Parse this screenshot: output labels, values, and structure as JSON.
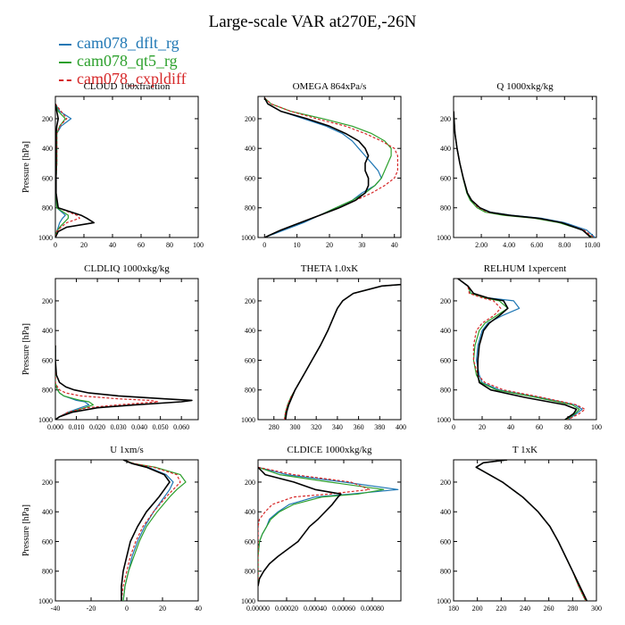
{
  "figure": {
    "title": "Large-scale VAR at270E,-26N"
  },
  "legend": [
    {
      "label": "cam078_dflt_rg",
      "color": "#1f77b4",
      "style": "solid"
    },
    {
      "label": "cam078_qt5_rg",
      "color": "#2ca02c",
      "style": "solid"
    },
    {
      "label": "cam078_cxpldiff",
      "color": "#d62728",
      "style": "dashed"
    },
    {
      "label": "",
      "color": "#000000",
      "style": "solid"
    }
  ],
  "chart_data": [
    {
      "type": "line",
      "title": "CLOUD 100xfraction",
      "xlabel": "",
      "ylabel": "Pressure [hPa]",
      "xlim": [
        0,
        100
      ],
      "ylim": [
        1000,
        50
      ],
      "xticks": [
        "0",
        "20",
        "40",
        "60",
        "80",
        "100"
      ],
      "yticks": [
        "200",
        "400",
        "600",
        "800",
        "1000"
      ],
      "y": [
        100,
        150,
        200,
        250,
        300,
        400,
        500,
        600,
        700,
        800,
        850,
        870,
        900,
        930,
        960,
        1000
      ],
      "series": [
        {
          "name": "cam078_dflt_rg",
          "values": [
            0,
            3,
            11,
            4,
            1,
            1,
            1,
            0.5,
            0.5,
            1,
            7,
            5,
            3,
            2,
            1,
            0
          ]
        },
        {
          "name": "cam078_qt5_rg",
          "values": [
            0,
            2,
            7,
            3,
            1,
            1,
            1,
            0.5,
            0.5,
            1,
            9,
            9,
            6,
            3,
            1,
            0
          ]
        },
        {
          "name": "cam078_cxpldiff",
          "values": [
            0,
            4,
            8,
            3,
            1,
            1,
            1,
            0.5,
            0.5,
            2,
            15,
            17,
            8,
            4,
            1,
            0
          ]
        },
        {
          "name": "",
          "values": [
            0,
            1,
            2,
            1,
            0.5,
            0.5,
            0.5,
            0.5,
            0.5,
            2,
            18,
            22,
            27,
            8,
            2,
            0
          ]
        }
      ]
    },
    {
      "type": "line",
      "title": "OMEGA 864xPa/s",
      "xlabel": "",
      "ylabel": "",
      "xlim": [
        -2,
        42
      ],
      "ylim": [
        1000,
        50
      ],
      "xticks": [
        "0",
        "10",
        "20",
        "30",
        "40"
      ],
      "yticks": [
        "200",
        "400",
        "600",
        "800",
        "1000"
      ],
      "y": [
        60,
        100,
        150,
        200,
        250,
        300,
        350,
        400,
        450,
        500,
        550,
        600,
        650,
        700,
        750,
        800,
        850,
        900,
        950,
        1000
      ],
      "series": [
        {
          "name": "cam078_dflt_rg",
          "values": [
            0,
            1,
            5,
            12,
            19,
            24,
            27,
            29,
            31,
            33,
            35,
            36,
            34,
            30,
            27,
            22,
            17,
            12,
            6,
            0
          ]
        },
        {
          "name": "cam078_qt5_rg",
          "values": [
            0,
            2,
            8,
            18,
            27,
            33,
            37,
            39,
            39,
            38,
            37,
            36,
            34,
            31,
            27,
            22,
            17,
            11,
            5,
            0
          ]
        },
        {
          "name": "cam078_cxpldiff",
          "values": [
            0,
            2,
            8,
            16,
            25,
            31,
            36,
            40,
            41,
            41,
            41,
            40,
            37,
            33,
            28,
            23,
            17,
            11,
            5,
            0
          ]
        },
        {
          "name": "",
          "values": [
            0,
            1,
            5,
            13,
            20,
            25,
            29,
            31,
            32,
            31,
            31,
            32,
            32,
            31,
            28,
            23,
            17,
            11,
            5,
            0
          ]
        }
      ]
    },
    {
      "type": "line",
      "title": "Q 1000xkg/kg",
      "xlabel": "",
      "ylabel": "",
      "xlim": [
        0,
        10.3
      ],
      "ylim": [
        1000,
        50
      ],
      "xticks": [
        "2.00",
        "4.00",
        "6.00",
        "8.00",
        "10.00"
      ],
      "yticks": [
        "200",
        "400",
        "600",
        "800",
        "1000"
      ],
      "y": [
        150,
        200,
        300,
        400,
        500,
        600,
        700,
        750,
        800,
        830,
        850,
        870,
        900,
        950,
        1000
      ],
      "series": [
        {
          "name": "cam078_dflt_rg",
          "values": [
            0.01,
            0.03,
            0.1,
            0.25,
            0.45,
            0.7,
            1.0,
            1.3,
            1.9,
            2.7,
            4.2,
            6.3,
            8.0,
            9.6,
            10.2
          ]
        },
        {
          "name": "cam078_qt5_rg",
          "values": [
            0.01,
            0.03,
            0.1,
            0.25,
            0.45,
            0.68,
            0.95,
            1.2,
            1.7,
            2.3,
            3.6,
            5.8,
            7.6,
            9.3,
            10.0
          ]
        },
        {
          "name": "cam078_cxpldiff",
          "values": [
            0.01,
            0.03,
            0.1,
            0.25,
            0.45,
            0.7,
            1.0,
            1.3,
            1.8,
            2.5,
            3.9,
            6.0,
            7.8,
            9.4,
            10.1
          ]
        },
        {
          "name": "",
          "values": [
            0.01,
            0.03,
            0.1,
            0.25,
            0.45,
            0.7,
            1.0,
            1.3,
            1.9,
            2.6,
            4.0,
            6.1,
            7.8,
            9.3,
            9.9
          ]
        }
      ]
    },
    {
      "type": "line",
      "title": "CLDLIQ 1000xkg/kg",
      "xlabel": "",
      "ylabel": "Pressure [hPa]",
      "xlim": [
        0,
        0.068
      ],
      "ylim": [
        1000,
        50
      ],
      "xticks": [
        "0.000",
        "0.010",
        "0.020",
        "0.030",
        "0.040",
        "0.050",
        "0.060"
      ],
      "yticks": [
        "200",
        "400",
        "600",
        "800",
        "1000"
      ],
      "y": [
        500,
        600,
        700,
        750,
        780,
        800,
        820,
        840,
        860,
        870,
        880,
        900,
        920,
        950,
        980,
        1000
      ],
      "series": [
        {
          "name": "cam078_dflt_rg",
          "values": [
            0,
            0,
            0,
            0,
            0.0005,
            0.001,
            0.002,
            0.004,
            0.008,
            0.01,
            0.014,
            0.016,
            0.012,
            0.006,
            0.002,
            0
          ]
        },
        {
          "name": "cam078_qt5_rg",
          "values": [
            0,
            0,
            0,
            0,
            0.0005,
            0.001,
            0.002,
            0.004,
            0.009,
            0.012,
            0.016,
            0.018,
            0.014,
            0.007,
            0.002,
            0
          ]
        },
        {
          "name": "cam078_cxpldiff",
          "values": [
            0,
            0,
            0,
            0,
            0.001,
            0.002,
            0.005,
            0.012,
            0.03,
            0.045,
            0.049,
            0.03,
            0.015,
            0.006,
            0.002,
            0
          ]
        },
        {
          "name": "",
          "values": [
            0,
            0,
            0.0005,
            0.002,
            0.005,
            0.009,
            0.016,
            0.03,
            0.052,
            0.065,
            0.06,
            0.038,
            0.02,
            0.008,
            0.002,
            0
          ]
        }
      ]
    },
    {
      "type": "line",
      "title": "THETA 1.0xK",
      "xlabel": "",
      "ylabel": "",
      "xlim": [
        265,
        400
      ],
      "ylim": [
        1000,
        50
      ],
      "xticks": [
        "280",
        "300",
        "320",
        "340",
        "360",
        "380",
        "400"
      ],
      "yticks": [
        "200",
        "400",
        "600",
        "800",
        "1000"
      ],
      "y": [
        90,
        100,
        150,
        200,
        250,
        300,
        400,
        500,
        600,
        700,
        800,
        850,
        900,
        950,
        1000
      ],
      "series": [
        {
          "name": "cam078_dflt_rg",
          "values": [
            400,
            382,
            355,
            345,
            340,
            337,
            331,
            324,
            316,
            308,
            300,
            296,
            293,
            291,
            290
          ]
        },
        {
          "name": "cam078_qt5_rg",
          "values": [
            400,
            382,
            355,
            345,
            340,
            337,
            331,
            324,
            316,
            308,
            300,
            296,
            293,
            291,
            290
          ]
        },
        {
          "name": "cam078_cxpldiff",
          "values": [
            400,
            382,
            355,
            345,
            340,
            337,
            331,
            324,
            316,
            308,
            300,
            296,
            293,
            291,
            290
          ]
        },
        {
          "name": "",
          "values": [
            400,
            382,
            355,
            345,
            340,
            337,
            331,
            324,
            316,
            308,
            300,
            297,
            294,
            292,
            291
          ]
        }
      ]
    },
    {
      "type": "line",
      "title": "RELHUM 1xpercent",
      "xlabel": "",
      "ylabel": "",
      "xlim": [
        0,
        100
      ],
      "ylim": [
        1000,
        50
      ],
      "xticks": [
        "0",
        "20",
        "40",
        "60",
        "80",
        "100"
      ],
      "yticks": [
        "200",
        "400",
        "600",
        "800",
        "1000"
      ],
      "y": [
        50,
        100,
        150,
        180,
        200,
        250,
        300,
        350,
        400,
        500,
        600,
        700,
        750,
        800,
        850,
        900,
        930,
        960,
        1000
      ],
      "series": [
        {
          "name": "cam078_dflt_rg",
          "values": [
            3,
            10,
            12,
            24,
            42,
            46,
            34,
            24,
            20,
            17,
            16,
            18,
            20,
            32,
            60,
            85,
            90,
            86,
            80
          ]
        },
        {
          "name": "cam078_qt5_rg",
          "values": [
            3,
            10,
            12,
            22,
            32,
            38,
            30,
            22,
            18,
            15,
            14,
            16,
            19,
            30,
            58,
            83,
            88,
            85,
            79
          ]
        },
        {
          "name": "cam078_cxpldiff",
          "values": [
            3,
            10,
            11,
            20,
            28,
            33,
            28,
            20,
            16,
            14,
            14,
            17,
            22,
            35,
            62,
            86,
            92,
            88,
            80
          ]
        },
        {
          "name": "",
          "values": [
            3,
            10,
            14,
            24,
            35,
            38,
            32,
            25,
            21,
            18,
            17,
            17,
            18,
            26,
            50,
            78,
            86,
            84,
            78
          ]
        }
      ]
    },
    {
      "type": "line",
      "title": "U 1xm/s",
      "xlabel": "",
      "ylabel": "Pressure [hPa]",
      "xlim": [
        -40,
        40
      ],
      "ylim": [
        1000,
        50
      ],
      "xticks": [
        "-40",
        "-20",
        "0",
        "20",
        "40"
      ],
      "yticks": [
        "200",
        "400",
        "600",
        "800",
        "1000"
      ],
      "y": [
        50,
        75,
        100,
        150,
        200,
        250,
        300,
        400,
        500,
        600,
        700,
        800,
        900,
        1000
      ],
      "series": [
        {
          "name": "cam078_dflt_rg",
          "values": [
            -2,
            3,
            12,
            22,
            26,
            24,
            21,
            15,
            10,
            6,
            3,
            1,
            -1,
            -2
          ]
        },
        {
          "name": "cam078_qt5_rg",
          "values": [
            -2,
            4,
            16,
            30,
            33,
            28,
            24,
            17,
            11,
            7,
            4,
            1,
            -1,
            -2
          ]
        },
        {
          "name": "cam078_cxpldiff",
          "values": [
            -2,
            4,
            15,
            28,
            30,
            26,
            22,
            15,
            9,
            5,
            2,
            0,
            -2,
            -3
          ]
        },
        {
          "name": "",
          "values": [
            -2,
            3,
            11,
            21,
            24,
            21,
            18,
            11,
            6,
            2,
            0,
            -2,
            -3,
            -3
          ]
        }
      ]
    },
    {
      "type": "line",
      "title": "CLDICE 1000xkg/kg",
      "xlabel": "",
      "ylabel": "",
      "xlim": [
        0,
        0.001
      ],
      "ylim": [
        1000,
        50
      ],
      "xticks": [
        "0.00000",
        "0.00020",
        "0.00040",
        "0.00060",
        "0.00080"
      ],
      "yticks": [
        "200",
        "400",
        "600",
        "800",
        "1000"
      ],
      "y": [
        100,
        150,
        200,
        250,
        280,
        300,
        350,
        400,
        450,
        500,
        550,
        600,
        700,
        750,
        800,
        850,
        900
      ],
      "series": [
        {
          "name": "cam078_dflt_rg",
          "values": [
            0,
            0.0002,
            0.0006,
            0.00098,
            0.00065,
            0.0004,
            0.00022,
            0.00014,
            8e-05,
            6e-05,
            3e-05,
            1e-05,
            0,
            0,
            0,
            0,
            0
          ]
        },
        {
          "name": "cam078_qt5_rg",
          "values": [
            0,
            0.00015,
            0.0005,
            0.00088,
            0.0007,
            0.00045,
            0.00025,
            0.00015,
            9e-05,
            6e-05,
            3e-05,
            1e-05,
            0,
            0,
            0,
            0,
            0
          ]
        },
        {
          "name": "cam078_cxpldiff",
          "values": [
            0,
            0.00025,
            0.00065,
            0.00078,
            0.0005,
            0.00025,
            0.0001,
            5e-05,
            1e-05,
            0,
            0,
            0,
            0,
            0,
            0,
            0,
            0
          ]
        },
        {
          "name": "",
          "values": [
            0,
            5e-05,
            0.00025,
            0.0004,
            0.00058,
            0.00056,
            0.00052,
            0.00047,
            0.00042,
            0.00036,
            0.00032,
            0.00028,
            0.00014,
            8e-05,
            4e-05,
            1e-05,
            0
          ]
        }
      ]
    },
    {
      "type": "line",
      "title": "T 1xK",
      "xlabel": "",
      "ylabel": "",
      "xlim": [
        180,
        300
      ],
      "ylim": [
        1000,
        50
      ],
      "xticks": [
        "180",
        "200",
        "220",
        "240",
        "260",
        "280",
        "300"
      ],
      "yticks": [
        "200",
        "400",
        "600",
        "800",
        "1000"
      ],
      "y": [
        50,
        70,
        100,
        150,
        200,
        300,
        400,
        500,
        600,
        700,
        800,
        900,
        1000
      ],
      "series": [
        {
          "name": "cam078_dflt_rg",
          "values": [
            225,
            205,
            199,
            210,
            221,
            238,
            251,
            261,
            268,
            274,
            280,
            285,
            291
          ]
        },
        {
          "name": "cam078_qt5_rg",
          "values": [
            225,
            205,
            199,
            210,
            221,
            238,
            251,
            261,
            268,
            274,
            280,
            285,
            291
          ]
        },
        {
          "name": "cam078_cxpldiff",
          "values": [
            225,
            205,
            199,
            210,
            221,
            238,
            251,
            261,
            268,
            274,
            280,
            285,
            291
          ]
        },
        {
          "name": "",
          "values": [
            225,
            205,
            199,
            210,
            221,
            238,
            251,
            261,
            268,
            274,
            280,
            286,
            292
          ]
        }
      ]
    }
  ]
}
